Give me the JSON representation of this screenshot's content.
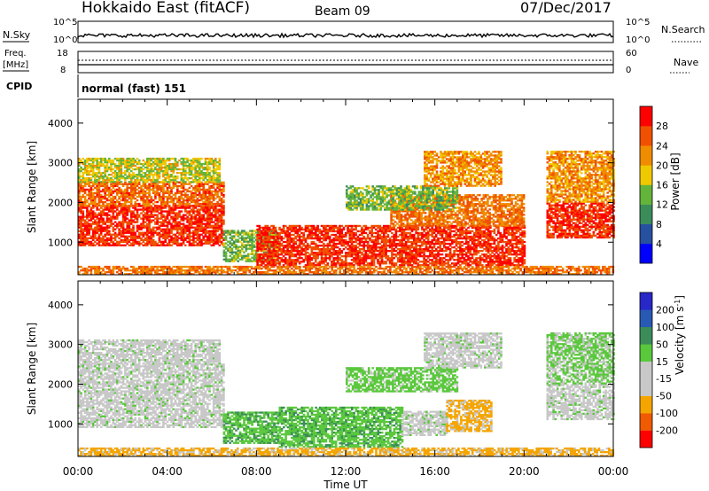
{
  "header": {
    "station": "Hokkaido East (fitACF)",
    "beam": "Beam 09",
    "date": "07/Dec/2017"
  },
  "top_panel": {
    "nsky_label": "N.Sky",
    "nsearch_label": "N.Search",
    "left_ticks": [
      "10^5",
      "10^0"
    ],
    "right_ticks": [
      "10^5",
      "10^0"
    ],
    "freq_label": "Freq.",
    "freq_unit": "[MHz]",
    "freq_ticks": [
      "18",
      "8"
    ],
    "nave_label": "Nave",
    "nave_ticks": [
      "60",
      "0"
    ],
    "cpid_label": "CPID",
    "cpid_value": "normal (fast) 151"
  },
  "colors": {
    "power": [
      "#0000ff",
      "#2850a0",
      "#3c8c5a",
      "#64b43c",
      "#f0c800",
      "#f08c00",
      "#f05000",
      "#ff0000"
    ],
    "velocity": [
      "#ff0000",
      "#f05a00",
      "#f5a500",
      "#c8c8c8",
      "#c8c8c8",
      "#5ac83c",
      "#3c8c5a",
      "#285ab4",
      "#2828c8"
    ]
  },
  "chart_data": [
    {
      "type": "heatmap",
      "panel": "power",
      "ylabel": "Slant Range [km]",
      "xlim": [
        0,
        24
      ],
      "ylim": [
        180,
        4600
      ],
      "yticks": [
        1000,
        2000,
        3000,
        4000
      ],
      "colorbar": {
        "label": "Power [dB]",
        "range": [
          0,
          32
        ],
        "ticks": [
          "4",
          "8",
          "12",
          "16",
          "20",
          "24",
          "28"
        ]
      },
      "regions": [
        {
          "t0": 0.0,
          "t1": 6.5,
          "r0": 900,
          "r1": 1900,
          "value": 28
        },
        {
          "t0": 0.0,
          "t1": 6.5,
          "r0": 1900,
          "r1": 2500,
          "value": 25
        },
        {
          "t0": 0.0,
          "t1": 6.3,
          "r0": 2500,
          "r1": 3100,
          "value": 17
        },
        {
          "t0": 6.5,
          "t1": 9.0,
          "r0": 500,
          "r1": 1300,
          "value": 14
        },
        {
          "t0": 8.0,
          "t1": 20.0,
          "r0": 400,
          "r1": 1400,
          "value": 28
        },
        {
          "t0": 14.0,
          "t1": 20.0,
          "r0": 1400,
          "r1": 2200,
          "value": 24
        },
        {
          "t0": 12.0,
          "t1": 17.0,
          "r0": 1800,
          "r1": 2400,
          "value": 14
        },
        {
          "t0": 15.5,
          "t1": 19.0,
          "r0": 2400,
          "r1": 3300,
          "value": 22
        },
        {
          "t0": 21.0,
          "t1": 24.0,
          "r0": 1100,
          "r1": 2000,
          "value": 28
        },
        {
          "t0": 21.0,
          "t1": 24.0,
          "r0": 2000,
          "r1": 3300,
          "value": 22
        },
        {
          "t0": 0.0,
          "t1": 24.0,
          "r0": 180,
          "r1": 400,
          "value": 24
        }
      ]
    },
    {
      "type": "heatmap",
      "panel": "velocity",
      "xlabel": "Time UT",
      "ylabel": "Slant Range [km]",
      "xlim": [
        0,
        24
      ],
      "ylim": [
        180,
        4600
      ],
      "xticks": [
        "00:00",
        "04:00",
        "08:00",
        "12:00",
        "16:00",
        "20:00",
        "00:00"
      ],
      "yticks": [
        1000,
        2000,
        3000,
        4000
      ],
      "colorbar": {
        "label": "Velocity",
        "unit": "[m s",
        "unit_exp": "-1",
        "unit_close": "]",
        "ticks": [
          "-200",
          "-100",
          "-50",
          "-15",
          "15",
          "50",
          "100",
          "200"
        ]
      },
      "regions": [
        {
          "t0": 0.0,
          "t1": 6.5,
          "r0": 900,
          "r1": 2500,
          "value": 0
        },
        {
          "t0": 0.0,
          "t1": 6.3,
          "r0": 2500,
          "r1": 3100,
          "value": 0
        },
        {
          "t0": 6.5,
          "t1": 9.0,
          "r0": 500,
          "r1": 1300,
          "value": 40
        },
        {
          "t0": 9.0,
          "t1": 14.5,
          "r0": 400,
          "r1": 1400,
          "value": 40
        },
        {
          "t0": 14.5,
          "t1": 16.5,
          "r0": 700,
          "r1": 1300,
          "value": 0
        },
        {
          "t0": 16.5,
          "t1": 18.5,
          "r0": 800,
          "r1": 1600,
          "value": -60
        },
        {
          "t0": 12.0,
          "t1": 17.0,
          "r0": 1800,
          "r1": 2400,
          "value": 30
        },
        {
          "t0": 15.5,
          "t1": 19.0,
          "r0": 2400,
          "r1": 3300,
          "value": 0
        },
        {
          "t0": 21.0,
          "t1": 24.0,
          "r0": 1100,
          "r1": 2000,
          "value": 0
        },
        {
          "t0": 21.0,
          "t1": 24.0,
          "r0": 2000,
          "r1": 3300,
          "value": 20
        },
        {
          "t0": 0.0,
          "t1": 24.0,
          "r0": 180,
          "r1": 400,
          "value": -60
        }
      ]
    }
  ]
}
